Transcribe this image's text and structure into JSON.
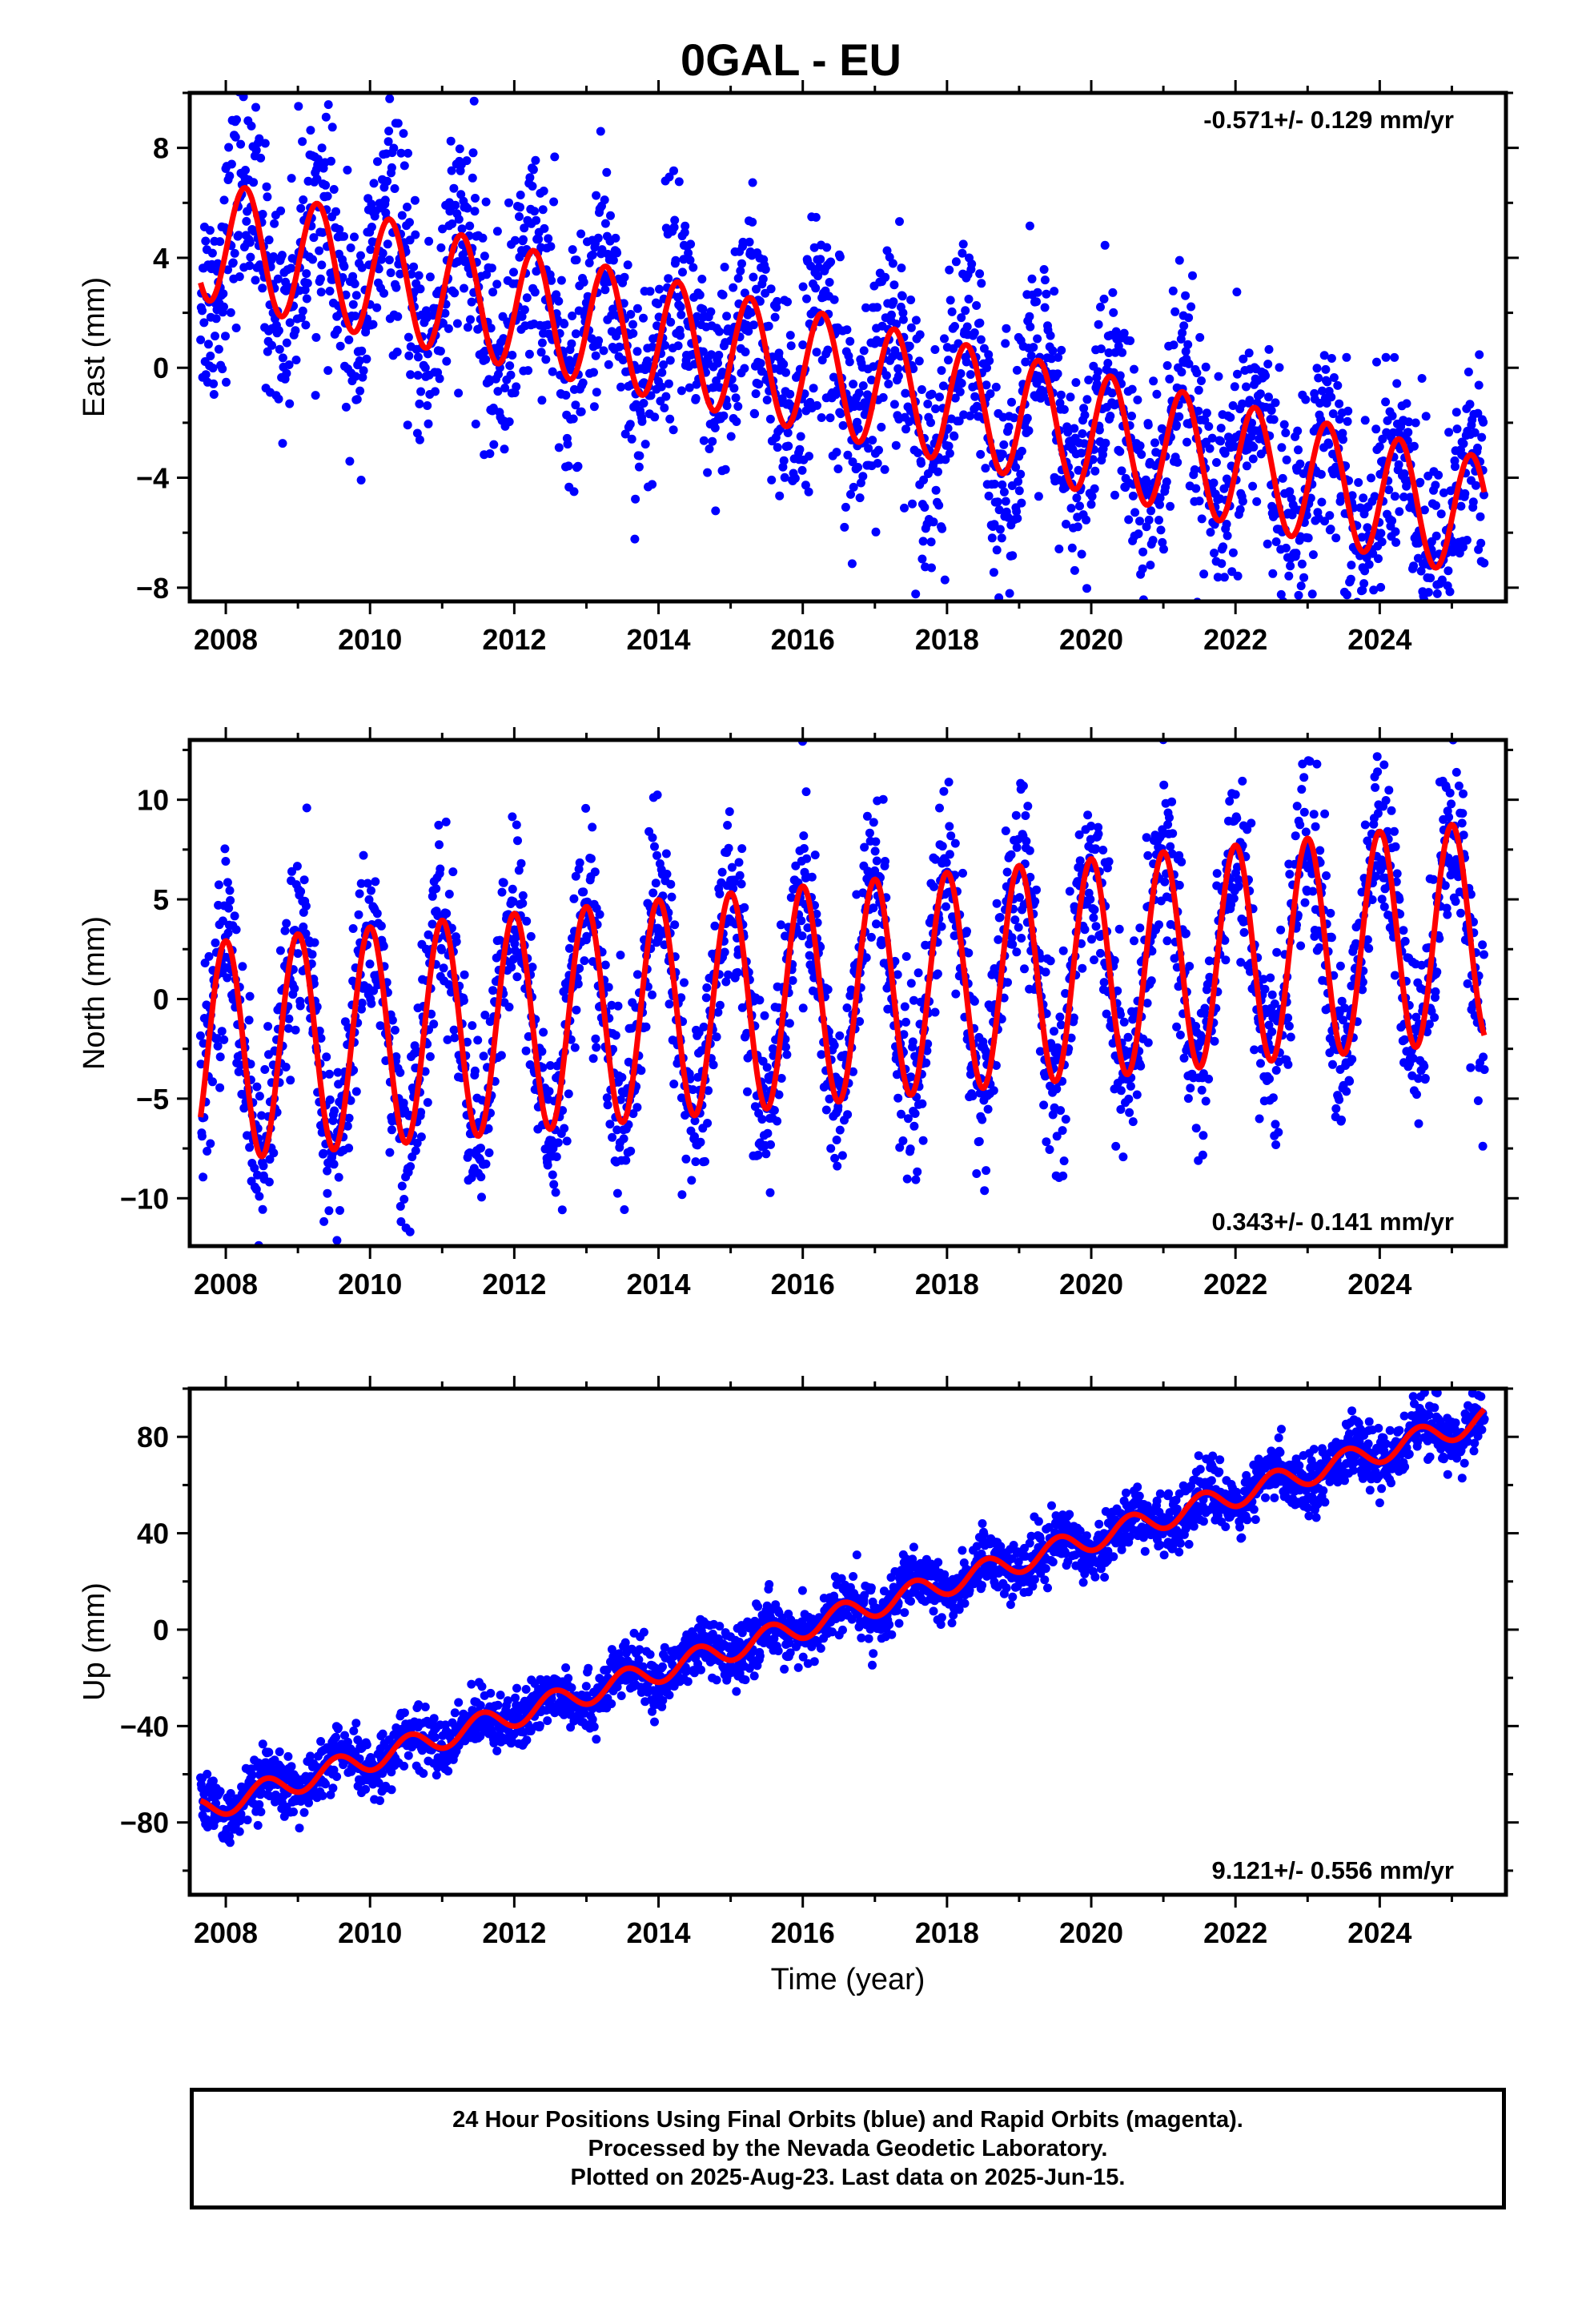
{
  "title": "0GAL - EU",
  "xlabel": "Time (year)",
  "caption": {
    "line1": "24 Hour Positions Using Final Orbits (blue) and Rapid Orbits (magenta).",
    "line2": "Processed by the Nevada Geodetic Laboratory.",
    "line3": "Plotted on 2025-Aug-23. Last data on 2025-Jun-15."
  },
  "colors": {
    "points": "#0000ff",
    "fit": "#ff0000",
    "axes": "#000000"
  },
  "chart_data": [
    {
      "type": "scatter",
      "ylabel": "East (mm)",
      "annotation": "-0.571+/- 0.129 mm/yr",
      "annotation_position": "top-right",
      "xlim": [
        2007.5,
        2025.75
      ],
      "ylim": [
        -8.5,
        10.0
      ],
      "xticks": [
        2008,
        2010,
        2012,
        2014,
        2016,
        2018,
        2020,
        2022,
        2024
      ],
      "yticks": [
        8,
        4,
        0,
        -4,
        -8
      ],
      "fit": {
        "base_start": 4.7,
        "rate": -0.571,
        "amplitude": 2.2,
        "peak_phase": 0.27,
        "x_start": 2007.65,
        "x_end": 2025.45
      },
      "scatter": {
        "start": 2007.65,
        "end": 2025.45,
        "spread": 2.0
      }
    },
    {
      "type": "scatter",
      "ylabel": "North (mm)",
      "annotation": "0.343+/- 0.141 mm/yr",
      "annotation_position": "bottom-right",
      "xlim": [
        2007.5,
        2025.75
      ],
      "ylim": [
        -12.4,
        13.0
      ],
      "xticks": [
        2008,
        2010,
        2012,
        2014,
        2016,
        2018,
        2020,
        2022,
        2024
      ],
      "yticks": [
        10,
        5,
        0,
        -5,
        -10
      ],
      "fit": {
        "base_start": -2.7,
        "rate": 0.343,
        "amplitude": 5.5,
        "peak_phase": 0.0,
        "x_start": 2007.65,
        "x_end": 2025.45
      },
      "scatter": {
        "start": 2007.65,
        "end": 2025.45,
        "spread": 2.2
      }
    },
    {
      "type": "scatter",
      "ylabel": "Up (mm)",
      "annotation": "9.121+/- 0.556 mm/yr",
      "annotation_position": "bottom-right",
      "xlim": [
        2007.5,
        2025.75
      ],
      "ylim": [
        -110,
        100
      ],
      "xticks": [
        2008,
        2010,
        2012,
        2014,
        2016,
        2018,
        2020,
        2022,
        2024
      ],
      "yticks": [
        80,
        40,
        0,
        -40,
        -80
      ],
      "fit": {
        "base_start": -75,
        "rate": 9.121,
        "amplitude": 5.0,
        "peak_phase": 0.55,
        "x_start": 2007.65,
        "x_end": 2025.45
      },
      "scatter": {
        "start": 2007.65,
        "end": 2025.45,
        "spread": 6.0
      }
    }
  ]
}
